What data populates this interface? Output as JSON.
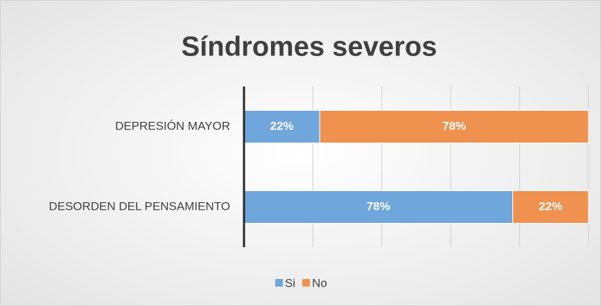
{
  "chart_data": {
    "type": "stacked-bar-horizontal",
    "title": "Síndromes severos",
    "categories": [
      "DEPRESIÓN MAYOR",
      "DESORDEN DEL PENSAMIENTO"
    ],
    "series": [
      {
        "name": "Si",
        "color": "#6fa6dc",
        "values": [
          22,
          78
        ],
        "value_labels": [
          "22%",
          "78%"
        ]
      },
      {
        "name": "No",
        "color": "#ef914f",
        "values": [
          78,
          22
        ],
        "value_labels": [
          "78%",
          "22%"
        ]
      }
    ],
    "xlim": [
      0,
      100
    ],
    "xticks": [
      0,
      20,
      40,
      60,
      80,
      100
    ],
    "grid": true,
    "legend": "bottom"
  }
}
